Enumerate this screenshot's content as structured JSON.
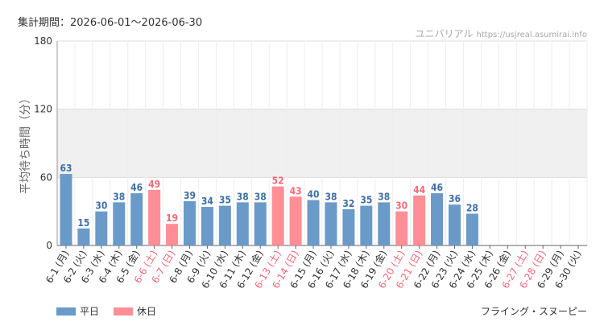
{
  "header": {
    "period_label": "集計期間：2026-06-01〜2026-06-30",
    "site_name": "ユニバリアル",
    "site_url": "https://usjreal.asumirai.info"
  },
  "footer": {
    "attraction": "フライング・スヌーピー"
  },
  "colors": {
    "weekday": "#6a9ac8",
    "holiday": "#ff8e96",
    "weekday_label": "#3f6fa8",
    "holiday_label": "#f06a78",
    "band": "#f0f0f0",
    "grid": "#dddddd"
  },
  "chart_data": {
    "type": "bar",
    "ylabel": "平均待ち時間（分）",
    "ylim": [
      0,
      180
    ],
    "yticks": [
      0,
      60,
      120,
      180
    ],
    "band": [
      60,
      120
    ],
    "legend": [
      {
        "key": "weekday",
        "label": "平日"
      },
      {
        "key": "holiday",
        "label": "休日"
      }
    ],
    "legend_position": "bottom-left",
    "categories": [
      "6-1 (月)",
      "6-2 (火)",
      "6-3 (水)",
      "6-4 (木)",
      "6-5 (金)",
      "6-6 (土)",
      "6-7 (日)",
      "6-8 (月)",
      "6-9 (火)",
      "6-10 (水)",
      "6-11 (木)",
      "6-12 (金)",
      "6-13 (土)",
      "6-14 (日)",
      "6-15 (月)",
      "6-16 (火)",
      "6-17 (水)",
      "6-18 (木)",
      "6-19 (金)",
      "6-20 (土)",
      "6-21 (日)",
      "6-22 (月)",
      "6-23 (火)",
      "6-24 (水)",
      "6-25 (木)",
      "6-26 (金)",
      "6-27 (土)",
      "6-28 (日)",
      "6-29 (月)",
      "6-30 (火)"
    ],
    "values": [
      63,
      15,
      30,
      38,
      46,
      49,
      19,
      39,
      34,
      35,
      38,
      38,
      52,
      43,
      40,
      38,
      32,
      35,
      38,
      30,
      44,
      46,
      36,
      28,
      null,
      null,
      null,
      null,
      null,
      null
    ],
    "day_type": [
      "weekday",
      "weekday",
      "weekday",
      "weekday",
      "weekday",
      "holiday",
      "holiday",
      "weekday",
      "weekday",
      "weekday",
      "weekday",
      "weekday",
      "holiday",
      "holiday",
      "weekday",
      "weekday",
      "weekday",
      "weekday",
      "weekday",
      "holiday",
      "holiday",
      "weekday",
      "weekday",
      "weekday",
      "weekday",
      "weekday",
      "holiday",
      "holiday",
      "weekday",
      "weekday"
    ]
  }
}
